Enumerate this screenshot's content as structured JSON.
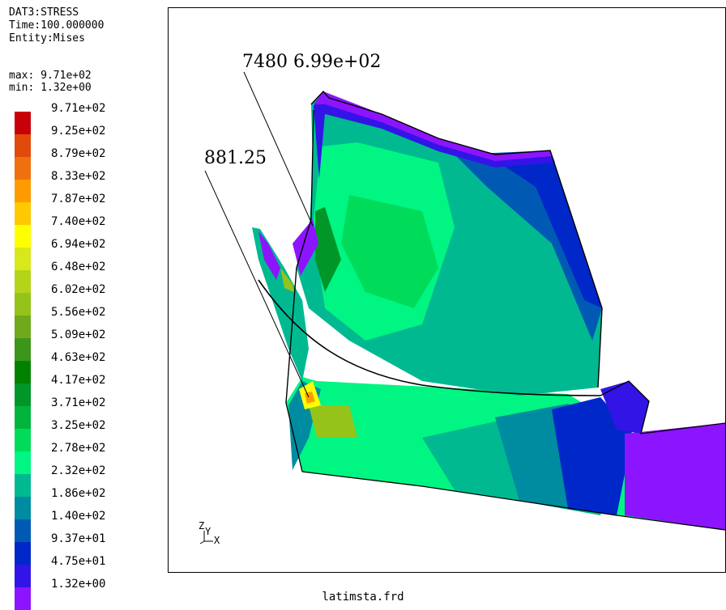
{
  "header": {
    "dataset": "DAT3:STRESS",
    "time": "Time:100.000000",
    "entity": "Entity:Mises",
    "max": "max: 9.71e+02",
    "min": "min: 1.32e+00"
  },
  "legend": [
    {
      "label": "9.71e+02",
      "color": "#c8000a"
    },
    {
      "label": "9.25e+02",
      "color": "#e04a0a"
    },
    {
      "label": "8.79e+02",
      "color": "#f07010"
    },
    {
      "label": "8.33e+02",
      "color": "#ff9b00"
    },
    {
      "label": "7.87e+02",
      "color": "#ffc800"
    },
    {
      "label": "7.40e+02",
      "color": "#ffff00"
    },
    {
      "label": "6.94e+02",
      "color": "#d8e81a"
    },
    {
      "label": "6.48e+02",
      "color": "#b4d41a"
    },
    {
      "label": "6.02e+02",
      "color": "#96c31a"
    },
    {
      "label": "5.56e+02",
      "color": "#6eaa1a"
    },
    {
      "label": "5.09e+02",
      "color": "#3c961a"
    },
    {
      "label": "4.63e+02",
      "color": "#008200"
    },
    {
      "label": "4.17e+02",
      "color": "#009628"
    },
    {
      "label": "3.71e+02",
      "color": "#00b43c"
    },
    {
      "label": "3.25e+02",
      "color": "#00dc5a"
    },
    {
      "label": "2.78e+02",
      "color": "#00f582"
    },
    {
      "label": "2.32e+02",
      "color": "#00b991"
    },
    {
      "label": "1.86e+02",
      "color": "#008ca0"
    },
    {
      "label": "1.40e+02",
      "color": "#005ab4"
    },
    {
      "label": "9.37e+01",
      "color": "#0028c8"
    },
    {
      "label": "4.75e+01",
      "color": "#3214e6"
    },
    {
      "label": "1.32e+00",
      "color": "#8c14ff"
    }
  ],
  "annotations": {
    "node_label": "7480 6.99e+02",
    "value_label": "881.25"
  },
  "axes": {
    "z": "Z",
    "y": "Y",
    "x": "X"
  },
  "filename": "latimsta.frd"
}
